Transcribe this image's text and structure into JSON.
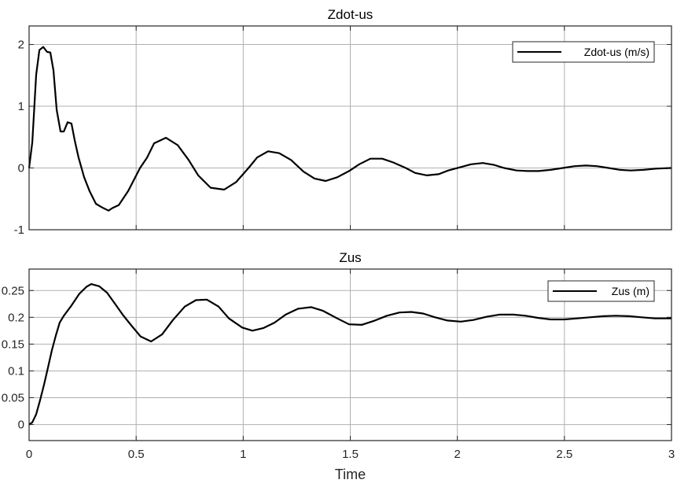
{
  "chart_data": [
    {
      "type": "line",
      "title": "Zdot-us",
      "xlabel": "",
      "ylabel": "",
      "xlim": [
        0,
        3
      ],
      "ylim": [
        -1,
        2.3
      ],
      "xticks": [
        "0",
        "0.5",
        "1",
        "1.5",
        "2",
        "2.5",
        "3"
      ],
      "yticks": [
        "-1",
        "0",
        "1",
        "2"
      ],
      "grid": true,
      "legend": {
        "position": "upper right",
        "entries": [
          "Zdot-us (m/s)"
        ]
      },
      "series": [
        {
          "name": "Zdot-us (m/s)",
          "color": "#000000",
          "x": [
            0,
            0.015,
            0.033,
            0.048,
            0.066,
            0.084,
            0.099,
            0.114,
            0.129,
            0.147,
            0.162,
            0.18,
            0.198,
            0.213,
            0.231,
            0.257,
            0.283,
            0.312,
            0.341,
            0.371,
            0.389,
            0.419,
            0.463,
            0.518,
            0.551,
            0.584,
            0.639,
            0.694,
            0.745,
            0.79,
            0.848,
            0.911,
            0.966,
            1.025,
            1.065,
            1.116,
            1.168,
            1.223,
            1.282,
            1.333,
            1.385,
            1.439,
            1.494,
            1.542,
            1.594,
            1.649,
            1.701,
            1.759,
            1.803,
            1.858,
            1.913,
            1.957,
            2.012,
            2.064,
            2.119,
            2.171,
            2.218,
            2.277,
            2.328,
            2.38,
            2.435,
            2.493,
            2.548,
            2.6,
            2.651,
            2.706,
            2.761,
            2.809,
            2.868,
            2.93,
            3.0
          ],
          "values": [
            0,
            0.42,
            1.51,
            1.91,
            1.96,
            1.88,
            1.87,
            1.58,
            0.94,
            0.59,
            0.59,
            0.74,
            0.72,
            0.45,
            0.17,
            -0.15,
            -0.38,
            -0.58,
            -0.64,
            -0.69,
            -0.65,
            -0.6,
            -0.37,
            0,
            0.17,
            0.4,
            0.49,
            0.37,
            0.13,
            -0.12,
            -0.32,
            -0.35,
            -0.23,
            0,
            0.17,
            0.27,
            0.24,
            0.13,
            -0.06,
            -0.17,
            -0.21,
            -0.15,
            -0.05,
            0.06,
            0.15,
            0.15,
            0.09,
            0,
            -0.08,
            -0.12,
            -0.1,
            -0.04,
            0.01,
            0.06,
            0.08,
            0.05,
            0,
            -0.04,
            -0.05,
            -0.05,
            -0.03,
            0,
            0.03,
            0.04,
            0.03,
            0,
            -0.03,
            -0.04,
            -0.03,
            -0.01,
            0
          ]
        }
      ]
    },
    {
      "type": "line",
      "title": "Zus",
      "xlabel": "Time",
      "ylabel": "",
      "xlim": [
        0,
        3
      ],
      "ylim": [
        -0.03,
        0.29
      ],
      "xticks": [
        "0",
        "0.5",
        "1",
        "1.5",
        "2",
        "2.5",
        "3"
      ],
      "yticks": [
        "0",
        "0.05",
        "0.1",
        "0.15",
        "0.2",
        "0.25"
      ],
      "grid": true,
      "legend": {
        "position": "upper right",
        "entries": [
          "Zus (m)"
        ]
      },
      "series": [
        {
          "name": "Zus (m)",
          "color": "#000000",
          "x": [
            0,
            0.015,
            0.033,
            0.051,
            0.07,
            0.088,
            0.106,
            0.125,
            0.143,
            0.161,
            0.198,
            0.235,
            0.268,
            0.29,
            0.327,
            0.364,
            0.4,
            0.437,
            0.477,
            0.521,
            0.57,
            0.621,
            0.672,
            0.727,
            0.779,
            0.83,
            0.885,
            0.933,
            0.995,
            1.043,
            1.095,
            1.146,
            1.198,
            1.256,
            1.318,
            1.373,
            1.439,
            1.494,
            1.553,
            1.608,
            1.671,
            1.73,
            1.785,
            1.84,
            1.896,
            1.954,
            2.016,
            2.075,
            2.137,
            2.196,
            2.262,
            2.318,
            2.376,
            2.435,
            2.5,
            2.56,
            2.618,
            2.681,
            2.74,
            2.802,
            2.861,
            2.923,
            3.0
          ],
          "values": [
            0,
            0.004,
            0.019,
            0.045,
            0.075,
            0.106,
            0.138,
            0.166,
            0.19,
            0.202,
            0.222,
            0.244,
            0.257,
            0.262,
            0.258,
            0.246,
            0.226,
            0.205,
            0.185,
            0.164,
            0.155,
            0.168,
            0.195,
            0.22,
            0.232,
            0.233,
            0.22,
            0.198,
            0.181,
            0.175,
            0.18,
            0.19,
            0.205,
            0.216,
            0.219,
            0.212,
            0.198,
            0.187,
            0.186,
            0.193,
            0.203,
            0.209,
            0.21,
            0.207,
            0.2,
            0.194,
            0.192,
            0.195,
            0.201,
            0.205,
            0.205,
            0.203,
            0.199,
            0.196,
            0.196,
            0.198,
            0.2,
            0.202,
            0.203,
            0.202,
            0.2,
            0.198,
            0.198
          ]
        }
      ]
    }
  ]
}
